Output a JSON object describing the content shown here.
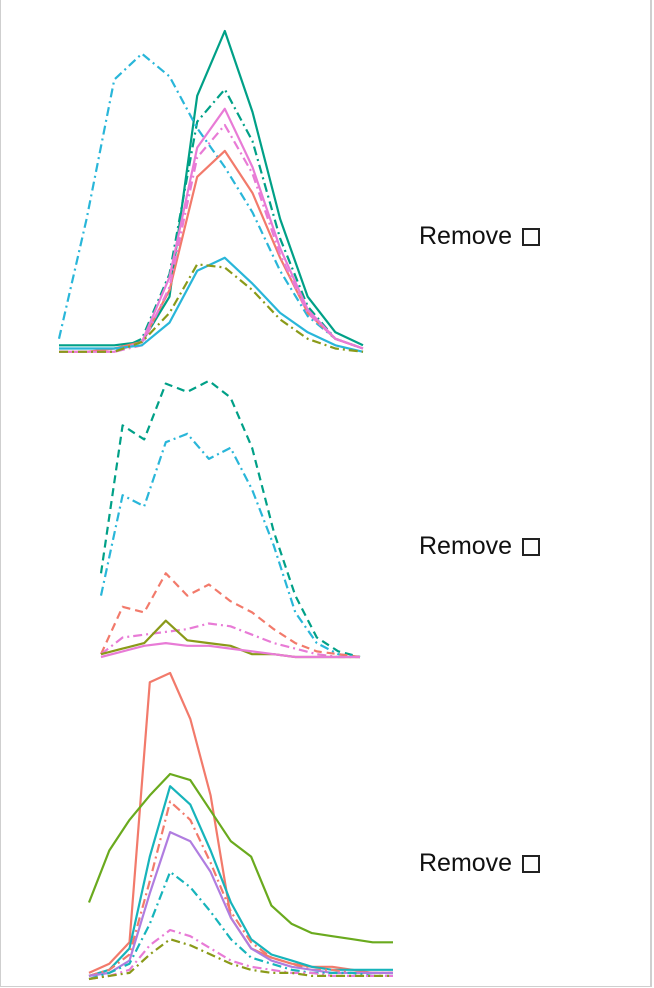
{
  "rows": [
    {
      "remove_label": "Remove",
      "chart_data": {
        "type": "line",
        "x": [
          1,
          2,
          3,
          4,
          5,
          6,
          7,
          8,
          9,
          10,
          11,
          12
        ],
        "ylim": [
          0,
          100
        ],
        "series": [
          {
            "color": "#00a087",
            "dash": "solid",
            "values": [
              3,
              3,
              3,
              4,
              18,
              80,
              100,
              75,
              42,
              18,
              7,
              3
            ]
          },
          {
            "color": "#00a087",
            "dash": "dashdot",
            "values": [
              1,
              1,
              1,
              5,
              25,
              72,
              82,
              66,
              36,
              15,
              5,
              2
            ]
          },
          {
            "color": "#29b6d9",
            "dash": "dashdot",
            "values": [
              5,
              42,
              85,
              93,
              86,
              70,
              58,
              44,
              26,
              12,
              5,
              2
            ]
          },
          {
            "color": "#f27a6b",
            "dash": "solid",
            "values": [
              1,
              1,
              2,
              4,
              20,
              55,
              63,
              50,
              30,
              13,
              5,
              2
            ]
          },
          {
            "color": "#e87bd6",
            "dash": "solid",
            "values": [
              1,
              1,
              1,
              4,
              24,
              64,
              76,
              58,
              33,
              14,
              5,
              2
            ]
          },
          {
            "color": "#e87bd6",
            "dash": "dashdot",
            "values": [
              1,
              1,
              1,
              3,
              21,
              61,
              71,
              56,
              31,
              13,
              5,
              2
            ]
          },
          {
            "color": "#29b6d9",
            "dash": "solid",
            "values": [
              2,
              2,
              2,
              3,
              10,
              26,
              30,
              22,
              13,
              7,
              3,
              1
            ]
          },
          {
            "color": "#8a9a19",
            "dash": "dashdot",
            "values": [
              1,
              1,
              1,
              4,
              13,
              28,
              27,
              20,
              11,
              5,
              2,
              1
            ]
          }
        ]
      }
    },
    {
      "remove_label": "Remove",
      "chart_data": {
        "type": "line",
        "x": [
          1,
          2,
          3,
          4,
          5,
          6,
          7,
          8,
          9,
          10,
          11,
          12,
          13
        ],
        "ylim": [
          0,
          100
        ],
        "series": [
          {
            "color": "#00a087",
            "dash": "dashed",
            "values": [
              30,
              83,
              78,
              98,
              95,
              99,
              93,
              75,
              45,
              22,
              7,
              2,
              0
            ]
          },
          {
            "color": "#29b6d9",
            "dash": "dashdot",
            "values": [
              22,
              58,
              54,
              77,
              80,
              71,
              75,
              60,
              40,
              16,
              5,
              1,
              0
            ]
          },
          {
            "color": "#f27a6b",
            "dash": "dashed",
            "values": [
              1,
              18,
              16,
              30,
              22,
              26,
              20,
              16,
              10,
              5,
              2,
              1,
              0
            ]
          },
          {
            "color": "#e87bd6",
            "dash": "dashdot",
            "values": [
              1,
              7,
              8,
              9,
              10,
              12,
              11,
              8,
              5,
              3,
              1,
              0,
              0
            ]
          },
          {
            "color": "#8a9a19",
            "dash": "solid",
            "values": [
              1,
              3,
              5,
              13,
              6,
              5,
              4,
              1,
              1,
              0,
              0,
              0,
              0
            ]
          },
          {
            "color": "#e87bd6",
            "dash": "solid",
            "values": [
              0,
              2,
              4,
              5,
              4,
              4,
              3,
              2,
              1,
              0,
              0,
              0,
              0
            ]
          }
        ]
      }
    },
    {
      "remove_label": "Remove",
      "chart_data": {
        "type": "line",
        "x": [
          1,
          2,
          3,
          4,
          5,
          6,
          7,
          8,
          9,
          10,
          11,
          12,
          13,
          14,
          15,
          16
        ],
        "ylim": [
          0,
          100
        ],
        "series": [
          {
            "color": "#f27a6b",
            "dash": "solid",
            "values": [
              2,
              5,
              12,
              97,
              100,
              85,
              60,
              20,
              10,
              7,
              5,
              4,
              4,
              3,
              2,
              2
            ]
          },
          {
            "color": "#6aaa1e",
            "dash": "solid",
            "values": [
              25,
              42,
              52,
              60,
              67,
              65,
              55,
              45,
              40,
              24,
              18,
              15,
              14,
              13,
              12,
              12
            ]
          },
          {
            "color": "#17b4bb",
            "dash": "solid",
            "values": [
              1,
              3,
              10,
              40,
              63,
              57,
              42,
              25,
              13,
              8,
              6,
              4,
              3,
              3,
              3,
              3
            ]
          },
          {
            "color": "#f27a6b",
            "dash": "dashdot",
            "values": [
              1,
              3,
              8,
              32,
              58,
              52,
              38,
              22,
              12,
              7,
              5,
              3,
              3,
              2,
              2,
              2
            ]
          },
          {
            "color": "#b07de0",
            "dash": "solid",
            "values": [
              1,
              2,
              6,
              28,
              48,
              45,
              35,
              20,
              10,
              6,
              4,
              3,
              2,
              2,
              2,
              2
            ]
          },
          {
            "color": "#17b4bb",
            "dash": "dashdot",
            "values": [
              0,
              2,
              5,
              18,
              35,
              30,
              22,
              13,
              7,
              5,
              3,
              2,
              2,
              2,
              1,
              1
            ]
          },
          {
            "color": "#e87bd6",
            "dash": "dashdot",
            "values": [
              0,
              1,
              3,
              11,
              16,
              14,
              10,
              6,
              4,
              3,
              2,
              2,
              1,
              1,
              1,
              1
            ]
          },
          {
            "color": "#8a9a19",
            "dash": "dashdot",
            "values": [
              0,
              1,
              2,
              8,
              13,
              11,
              8,
              5,
              3,
              2,
              2,
              1,
              1,
              1,
              1,
              1
            ]
          }
        ]
      }
    }
  ]
}
